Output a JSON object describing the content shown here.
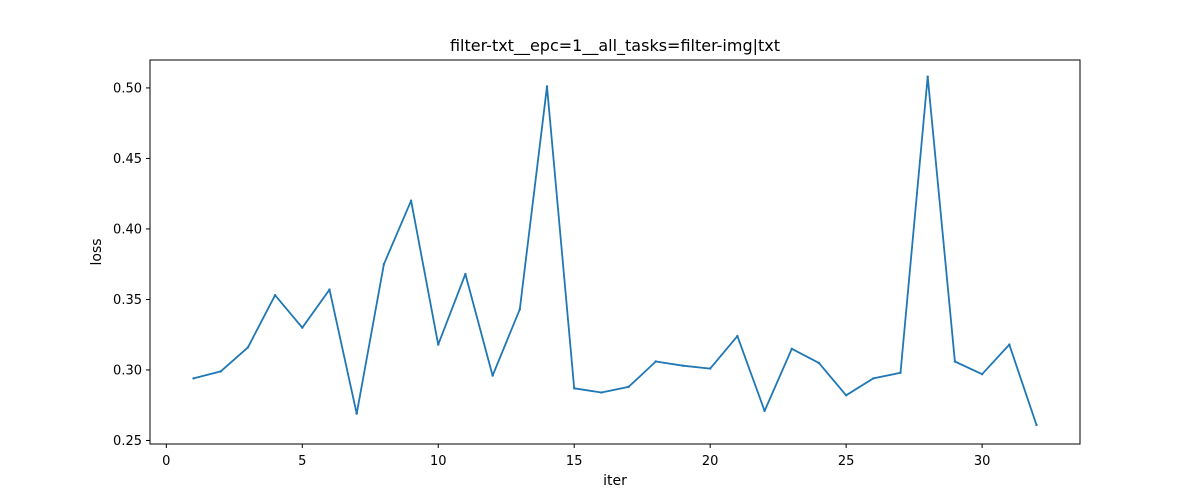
{
  "chart_data": {
    "type": "line",
    "title": "filter-txt__epc=1__all_tasks=filter-img|txt",
    "xlabel": "iter",
    "ylabel": "loss",
    "xlim": [
      -0.6,
      33.6
    ],
    "ylim": [
      0.2475,
      0.5198
    ],
    "xticks": [
      0,
      5,
      10,
      15,
      20,
      25,
      30
    ],
    "yticks": [
      0.25,
      0.3,
      0.35,
      0.4,
      0.45,
      0.5
    ],
    "ytick_labels": [
      "0.25",
      "0.30",
      "0.35",
      "0.40",
      "0.45",
      "0.50"
    ],
    "grid": false,
    "series": [
      {
        "color": "#1f77b4",
        "x": [
          1,
          2,
          3,
          4,
          5,
          6,
          7,
          8,
          9,
          10,
          11,
          12,
          13,
          14,
          15,
          16,
          17,
          18,
          19,
          20,
          21,
          22,
          23,
          24,
          25,
          26,
          27,
          28,
          29,
          30,
          31,
          32
        ],
        "y": [
          0.294,
          0.299,
          0.316,
          0.353,
          0.33,
          0.357,
          0.269,
          0.375,
          0.42,
          0.318,
          0.368,
          0.296,
          0.343,
          0.501,
          0.287,
          0.284,
          0.288,
          0.306,
          0.303,
          0.301,
          0.324,
          0.271,
          0.315,
          0.305,
          0.282,
          0.294,
          0.298,
          0.508,
          0.306,
          0.297,
          0.318,
          0.261
        ]
      }
    ]
  }
}
